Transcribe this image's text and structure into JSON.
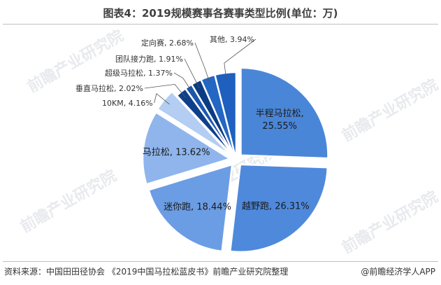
{
  "title": "图表4：2019规模赛事各赛事类型比例(单位：万)",
  "source": "资料来源：中国田田径协会 《2019中国马拉松蓝皮书》前瞻产业研究院整理",
  "credit": "@前瞻经济学人APP",
  "watermark": "前瞻产业研究院",
  "colors": {
    "outside_label": "#333333",
    "inside_label": "#1a1a1a",
    "leader": "#555555"
  },
  "chart_data": {
    "type": "pie",
    "title": "图表4：2019规模赛事各赛事类型比例(单位：万)",
    "start_angle_deg": 0,
    "direction": "clockwise",
    "slices": [
      {
        "name": "半程马拉松",
        "value": 25.55,
        "label": "25.55%",
        "color": "#4a86d8",
        "exploded": true,
        "label_inside": true
      },
      {
        "name": "越野跑",
        "value": 26.31,
        "label": "26.31%",
        "color": "#4f89dc",
        "exploded": true,
        "label_inside": true
      },
      {
        "name": "迷你跑",
        "value": 18.44,
        "label": "18.44%",
        "color": "#6b9de4",
        "exploded": true,
        "label_inside": true
      },
      {
        "name": "马拉松",
        "value": 13.62,
        "label": "13.62%",
        "color": "#8fb5ec",
        "exploded": true,
        "label_inside": true
      },
      {
        "name": "10KM",
        "value": 4.16,
        "label": "4.16%",
        "color": "#b3cdf3",
        "exploded": true,
        "label_inside": false
      },
      {
        "name": "垂直马拉松",
        "value": 2.02,
        "label": "2.02%",
        "color": "#0e3f8c",
        "exploded": false,
        "label_inside": false
      },
      {
        "name": "超级马拉松",
        "value": 1.37,
        "label": "1.37%",
        "color": "#1a56b0",
        "exploded": false,
        "label_inside": false
      },
      {
        "name": "团队接力跑",
        "value": 1.91,
        "label": "1.91%",
        "color": "#0b3b84",
        "exploded": false,
        "label_inside": false
      },
      {
        "name": "定向赛",
        "value": 2.68,
        "label": "2.68%",
        "color": "#2466c4",
        "exploded": false,
        "label_inside": false
      },
      {
        "name": "其他",
        "value": 3.94,
        "label": "3.94%",
        "color": "#1e5fbf",
        "exploded": false,
        "label_inside": false
      }
    ]
  }
}
